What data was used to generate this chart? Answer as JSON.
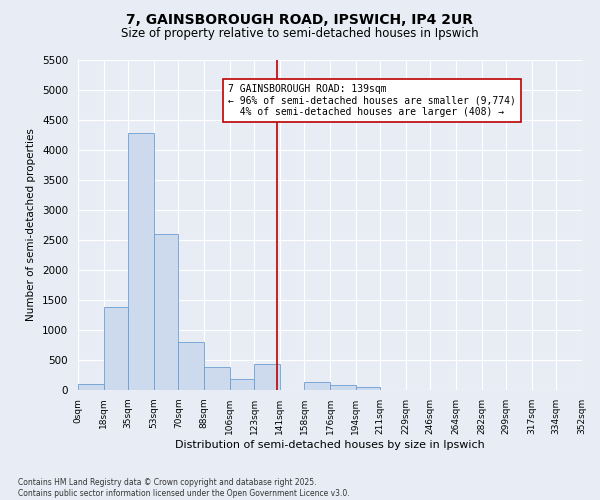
{
  "title1": "7, GAINSBOROUGH ROAD, IPSWICH, IP4 2UR",
  "title2": "Size of property relative to semi-detached houses in Ipswich",
  "xlabel": "Distribution of semi-detached houses by size in Ipswich",
  "ylabel": "Number of semi-detached properties",
  "bins": [
    0,
    18,
    35,
    53,
    70,
    88,
    106,
    123,
    141,
    158,
    176,
    194,
    211,
    229,
    246,
    264,
    282,
    299,
    317,
    334,
    352
  ],
  "bin_labels": [
    "0sqm",
    "18sqm",
    "35sqm",
    "53sqm",
    "70sqm",
    "88sqm",
    "106sqm",
    "123sqm",
    "141sqm",
    "158sqm",
    "176sqm",
    "194sqm",
    "211sqm",
    "229sqm",
    "246sqm",
    "264sqm",
    "282sqm",
    "299sqm",
    "317sqm",
    "334sqm",
    "352sqm"
  ],
  "counts": [
    95,
    1380,
    4280,
    2600,
    800,
    390,
    190,
    430,
    0,
    130,
    85,
    50,
    0,
    0,
    0,
    0,
    0,
    0,
    0,
    0
  ],
  "subject_size": 139,
  "subject_label": "7 GAINSBOROUGH ROAD: 139sqm",
  "pct_smaller": 96,
  "pct_larger": 4,
  "n_smaller": 9774,
  "n_larger": 408,
  "bar_color": "#cdd9ed",
  "bar_edge_color": "#6b9fd4",
  "line_color": "#bb0000",
  "box_edge_color": "#bb0000",
  "background_color": "#e8edf5",
  "grid_color": "#ffffff",
  "ylim": [
    0,
    5500
  ],
  "yticks": [
    0,
    500,
    1000,
    1500,
    2000,
    2500,
    3000,
    3500,
    4000,
    4500,
    5000,
    5500
  ],
  "footer1": "Contains HM Land Registry data © Crown copyright and database right 2025.",
  "footer2": "Contains public sector information licensed under the Open Government Licence v3.0."
}
